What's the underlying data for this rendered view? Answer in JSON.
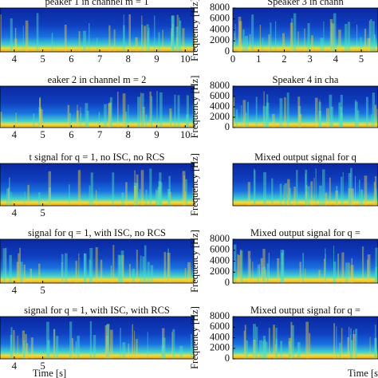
{
  "chart_data": [
    {
      "type": "spectrogram",
      "title": "peaker 1 in channel m = 1",
      "xlim": [
        3.5,
        10.3
      ],
      "xticks": [
        4,
        5,
        6,
        7,
        8,
        9,
        10
      ]
    },
    {
      "type": "spectrogram",
      "title": "eaker 2 in channel m = 2",
      "xlim": [
        3.5,
        10.3
      ],
      "xticks": [
        4,
        5,
        6,
        7,
        8,
        9,
        10
      ]
    },
    {
      "type": "spectrogram",
      "title": "t signal for q = 1, no ISC, no RCS",
      "xlim": [
        3.5,
        10.3
      ],
      "xticks": [
        4,
        5
      ]
    },
    {
      "type": "spectrogram",
      "title": "signal for q = 1, with ISC, no RCS",
      "xlim": [
        3.5,
        10.3
      ],
      "xticks": [
        4,
        5
      ]
    },
    {
      "type": "spectrogram",
      "title": "signal for q = 1, with ISC, with RCS",
      "xlim": [
        3.5,
        10.3
      ],
      "xticks": [
        4,
        5
      ],
      "xlabel": "Time [s]"
    },
    {
      "type": "spectrogram",
      "title": "Speaker 3 in chann",
      "xlim": [
        0,
        5.65
      ],
      "xticks": [
        0,
        1,
        2,
        3,
        4,
        5
      ],
      "ylim": [
        0,
        8000
      ],
      "yticks": [
        0,
        2000,
        4000,
        6000,
        8000
      ],
      "ylabel": "Frequency [Hz]"
    },
    {
      "type": "spectrogram",
      "title": "Speaker 4 in cha",
      "xlim": [
        0,
        5.65
      ],
      "ylim": [
        0,
        8000
      ],
      "yticks": [
        0,
        2000,
        4000,
        6000,
        8000
      ],
      "ylabel": "Frequency [Hz]"
    },
    {
      "type": "spectrogram",
      "title": "Mixed output signal for q",
      "xlim": [
        0,
        5.65
      ],
      "ylim": [
        0,
        8000
      ],
      "ylabel": "Frequency [Hz]"
    },
    {
      "type": "spectrogram",
      "title": "Mixed output signal for q =",
      "xlim": [
        0,
        5.65
      ],
      "ylim": [
        0,
        8000
      ],
      "yticks": [
        0,
        2000,
        4000,
        6000,
        8000
      ],
      "ylabel": "Frequency [Hz]"
    },
    {
      "type": "spectrogram",
      "title": "Mixed output signal for q =",
      "xlim": [
        0,
        5.65
      ],
      "ylim": [
        0,
        8000
      ],
      "yticks": [
        0,
        2000,
        4000,
        6000,
        8000
      ],
      "ylabel": "Frequency [Hz]",
      "xlabel": "Time [s"
    }
  ]
}
